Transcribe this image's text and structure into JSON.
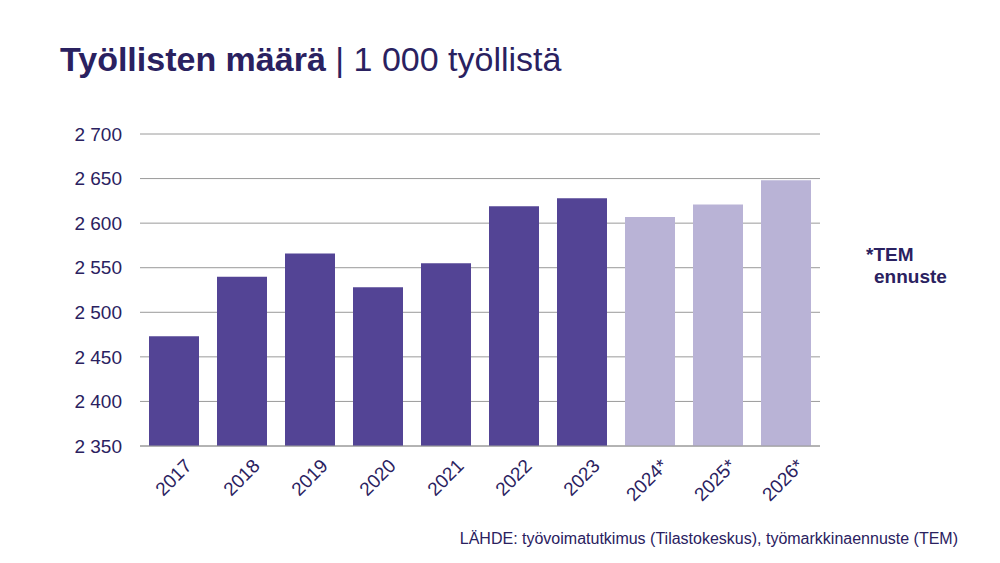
{
  "chart_data": {
    "type": "bar",
    "title": "Työllisten määrä",
    "subtitle": "| 1 000 työllistä",
    "categories": [
      "2017",
      "2018",
      "2019",
      "2020",
      "2021",
      "2022",
      "2023",
      "2024*",
      "2025*",
      "2026*"
    ],
    "values": [
      2473,
      2540,
      2566,
      2528,
      2555,
      2619,
      2628,
      2607,
      2621,
      2648
    ],
    "colors": [
      "#534495",
      "#534495",
      "#534495",
      "#534495",
      "#534495",
      "#534495",
      "#534495",
      "#b9b3d6",
      "#b9b3d6",
      "#b9b3d6"
    ],
    "ylim": [
      2350,
      2700
    ],
    "yticks": [
      {
        "value": 2350,
        "label": "2 350"
      },
      {
        "value": 2400,
        "label": "2 400"
      },
      {
        "value": 2450,
        "label": "2 450"
      },
      {
        "value": 2500,
        "label": "2 500"
      },
      {
        "value": 2550,
        "label": "2 550"
      },
      {
        "value": 2600,
        "label": "2 600"
      },
      {
        "value": 2650,
        "label": "2 650"
      },
      {
        "value": 2700,
        "label": "2 700"
      }
    ],
    "grid": true,
    "note": "*TEM ennuste",
    "source": "LÄHDE: työvoimatutkimus (Tilastokeskus), työmarkkinaennuste (TEM)"
  }
}
